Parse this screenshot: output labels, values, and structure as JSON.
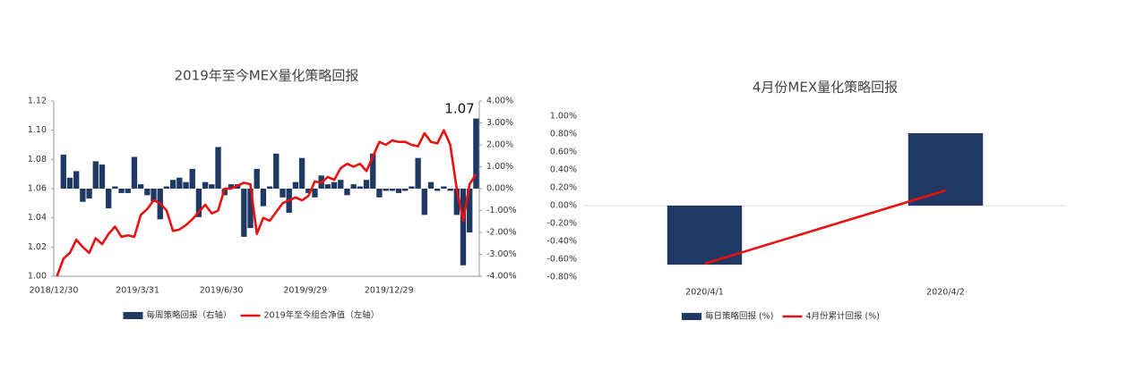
{
  "chart_data": [
    {
      "type": "combo",
      "title": "2019年至今MEX量化策略回报",
      "categories": [
        "2018/12/30",
        null,
        null,
        null,
        null,
        null,
        null,
        null,
        null,
        null,
        null,
        null,
        null,
        "2019/3/31",
        null,
        null,
        null,
        null,
        null,
        null,
        null,
        null,
        null,
        null,
        null,
        null,
        "2019/6/30",
        null,
        null,
        null,
        null,
        null,
        null,
        null,
        null,
        null,
        null,
        null,
        null,
        "2019/9/29",
        null,
        null,
        null,
        null,
        null,
        null,
        null,
        null,
        null,
        null,
        null,
        null,
        "2019/12/29",
        null,
        null,
        null,
        null,
        null,
        null,
        null,
        null,
        null,
        null,
        null,
        null,
        null
      ],
      "series": [
        {
          "name": "每周策略回报（右轴）",
          "type": "bar",
          "axis": "y2",
          "color": "#1f3864",
          "values": [
            null,
            1.55,
            0.5,
            0.8,
            -0.6,
            -0.45,
            1.25,
            1.1,
            -0.9,
            0.1,
            -0.2,
            -0.2,
            1.45,
            0.2,
            -0.3,
            -0.6,
            -1.4,
            0.1,
            0.4,
            0.5,
            0.3,
            0.9,
            -1.3,
            0.3,
            0.2,
            1.9,
            -0.3,
            0.2,
            0.2,
            -2.2,
            -1.8,
            0.9,
            -0.8,
            0.1,
            1.6,
            -0.4,
            -1.1,
            0.3,
            1.4,
            -0.2,
            -0.4,
            0.6,
            0.2,
            0.3,
            0.4,
            -0.3,
            0.2,
            0.1,
            0.4,
            1.6,
            -0.4,
            -0.1,
            -0.1,
            -0.2,
            -0.1,
            0.1,
            1.4,
            -1.2,
            0.3,
            -0.1,
            0.1,
            -0.1,
            -1.2,
            -3.5,
            -2.0,
            3.2
          ]
        },
        {
          "name": "2019年至今组合净值（左轴）",
          "type": "line",
          "color": "#e81010",
          "values": [
            1.0,
            1.012,
            1.016,
            1.025,
            1.02,
            1.016,
            1.026,
            1.022,
            1.029,
            1.034,
            1.027,
            1.028,
            1.027,
            1.042,
            1.046,
            1.052,
            1.05,
            1.045,
            1.031,
            1.032,
            1.035,
            1.039,
            1.044,
            1.049,
            1.043,
            1.045,
            1.06,
            1.06,
            1.062,
            1.064,
            1.063,
            1.029,
            1.04,
            1.038,
            1.044,
            1.05,
            1.052,
            1.054,
            1.052,
            1.055,
            1.065,
            1.064,
            1.068,
            1.066,
            1.074,
            1.077,
            1.075,
            1.077,
            1.072,
            1.082,
            1.092,
            1.09,
            1.093,
            1.092,
            1.092,
            1.09,
            1.089,
            1.098,
            1.092,
            1.091,
            1.1,
            1.09,
            1.06,
            1.038,
            1.063,
            1.07
          ]
        }
      ],
      "ylim": [
        1.0,
        1.12
      ],
      "yticks": [
        {
          "value": 1.0,
          "label": "1.00"
        },
        1.02,
        1.04,
        1.06,
        1.08,
        {
          "value": 1.1,
          "label": "1.10"
        },
        1.12
      ],
      "y2lim": [
        -4,
        4
      ],
      "y2ticks": [
        {
          "value": -4,
          "label": "-4.00%"
        },
        {
          "value": -3,
          "label": "-3.00%"
        },
        {
          "value": -2,
          "label": "-2.00%"
        },
        {
          "value": -1,
          "label": "-1.00%"
        },
        {
          "value": 0,
          "label": "0.00%"
        },
        {
          "value": 1,
          "label": "1.00%"
        },
        {
          "value": 2,
          "label": "2.00%"
        },
        {
          "value": 3,
          "label": "3.00%"
        },
        {
          "value": 4,
          "label": "4.00%"
        }
      ],
      "annotation": "1.07"
    },
    {
      "type": "combo",
      "title": "4月份MEX量化策略回报",
      "categories": [
        "2020/4/1",
        "2020/4/2"
      ],
      "series": [
        {
          "name": "每日策略回报 (%)",
          "type": "bar",
          "color": "#1f3864",
          "values": [
            -0.66,
            0.81
          ]
        },
        {
          "name": "4月份累计回报 (%)",
          "type": "line",
          "color": "#e81010",
          "values": [
            -0.65,
            0.17
          ]
        }
      ],
      "ylim": [
        -0.8,
        1.0
      ],
      "yticks": [
        {
          "value": -0.8,
          "label": "-0.80%"
        },
        {
          "value": -0.6,
          "label": "-0.60%"
        },
        {
          "value": -0.4,
          "label": "-0.40%"
        },
        {
          "value": -0.2,
          "label": "-0.20%"
        },
        {
          "value": 0,
          "label": "0.00%"
        },
        {
          "value": 0.2,
          "label": "0.20%"
        },
        {
          "value": 0.4,
          "label": "0.40%"
        },
        {
          "value": 0.6,
          "label": "0.60%"
        },
        {
          "value": 0.8,
          "label": "0.80%"
        },
        {
          "value": 1.0,
          "label": "1.00%"
        }
      ]
    }
  ]
}
